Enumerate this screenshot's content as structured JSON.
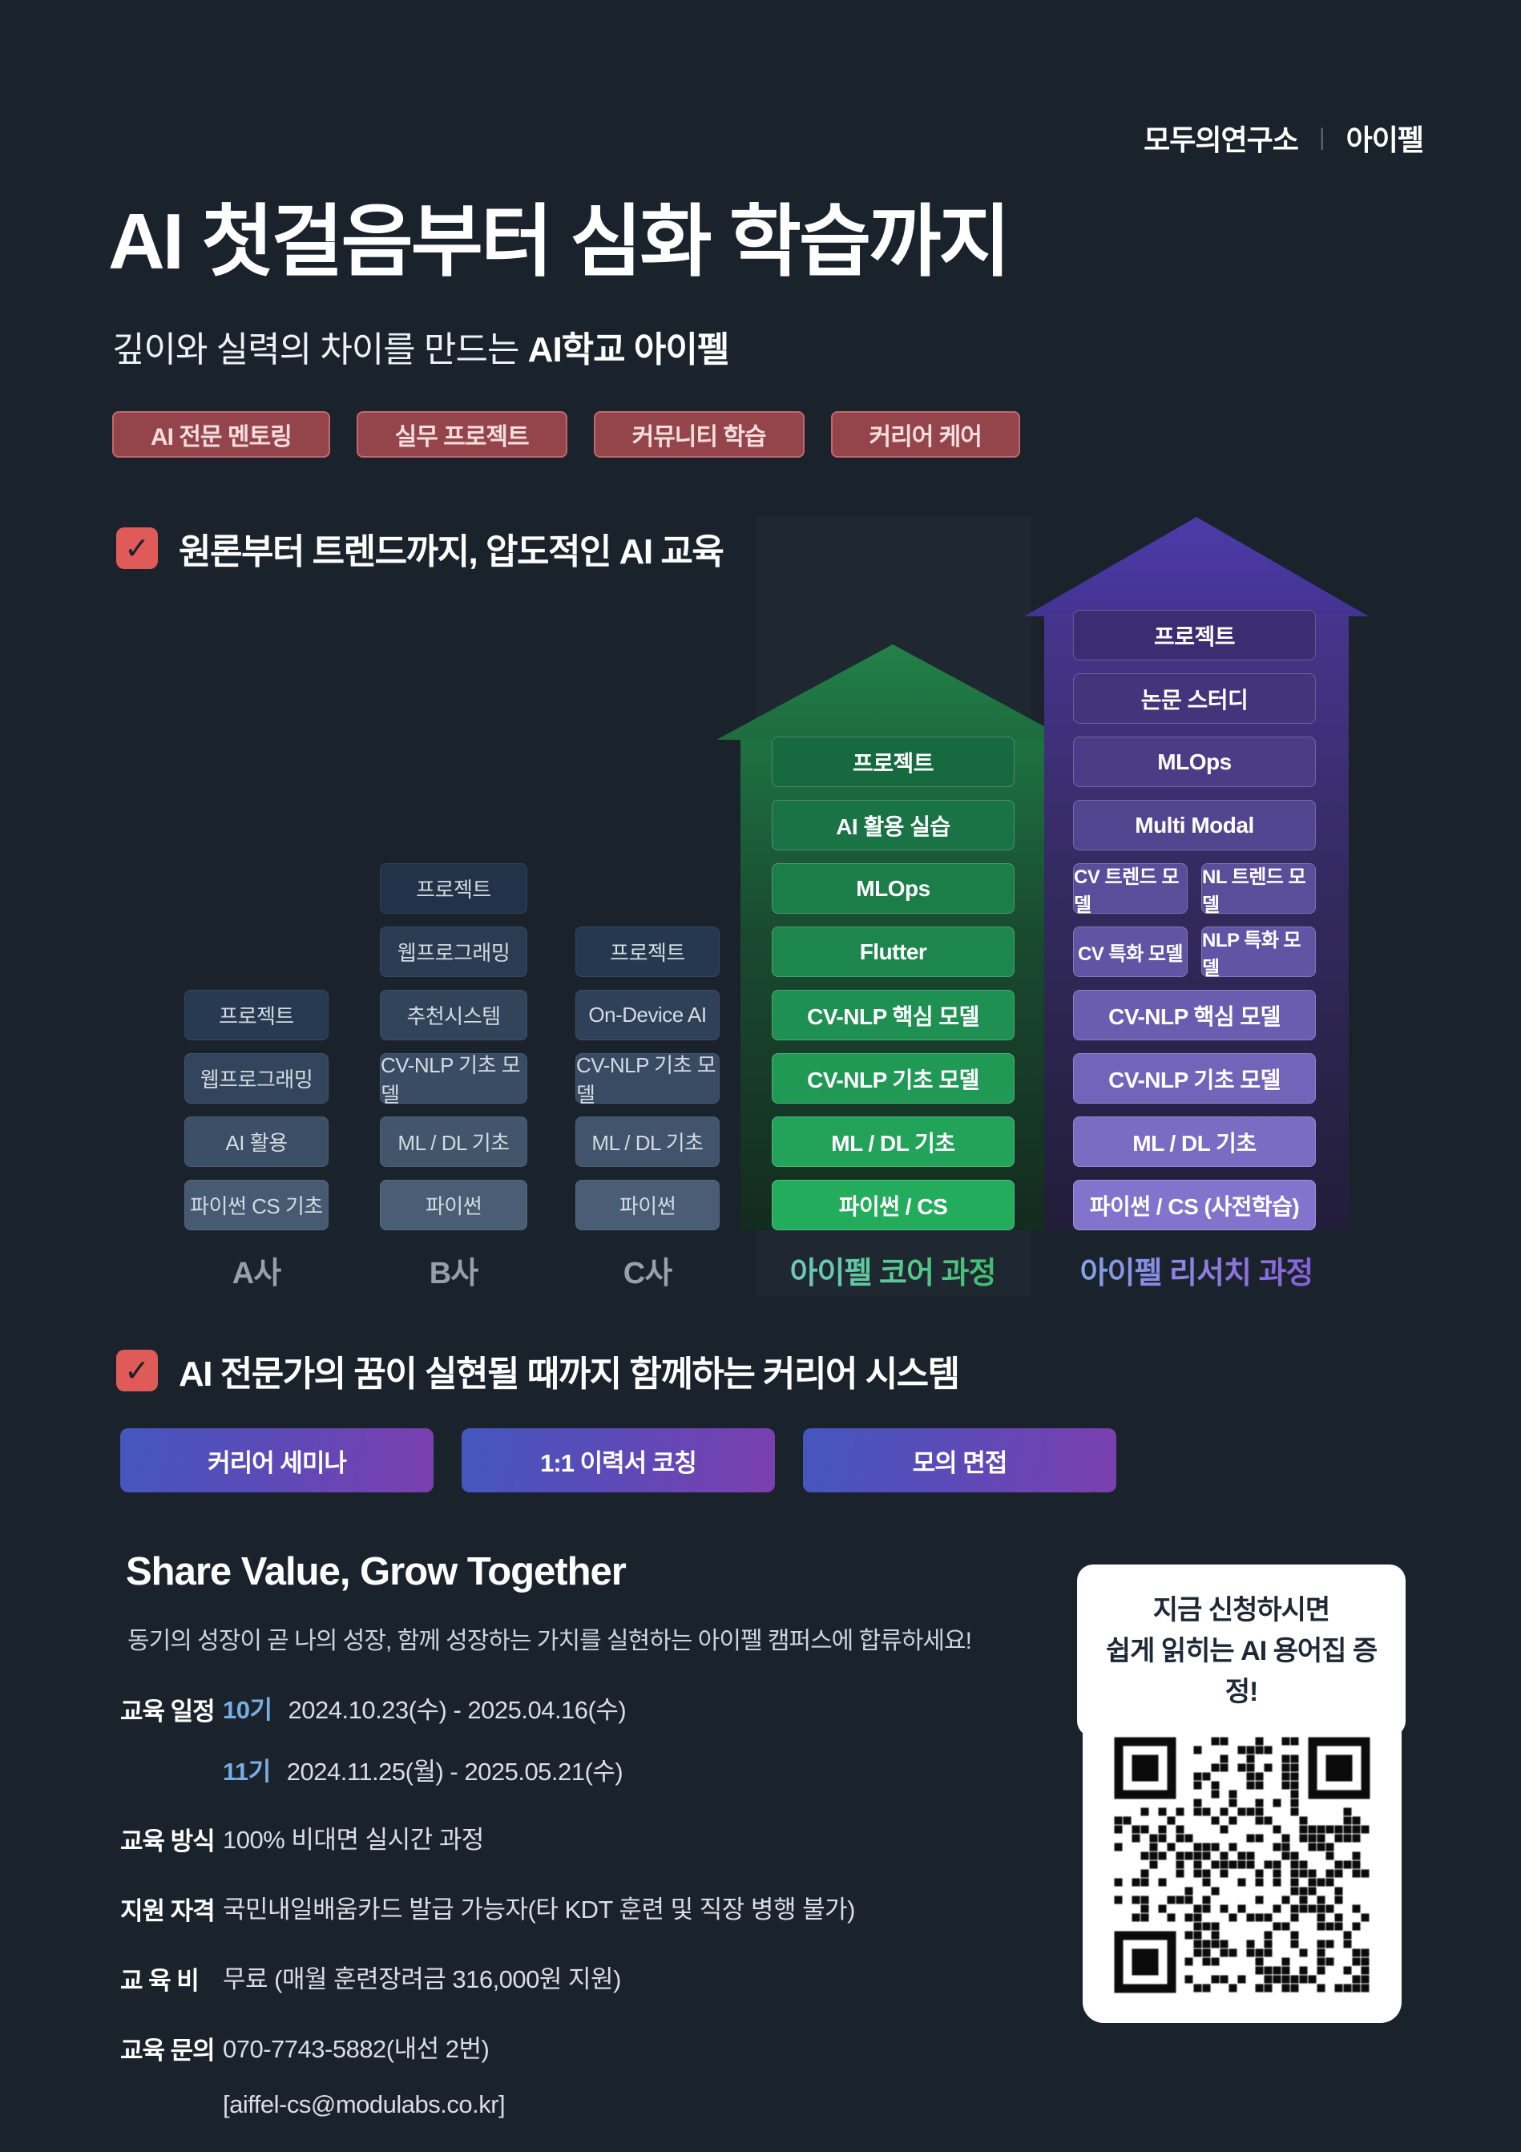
{
  "brand": {
    "left": "모두의연구소",
    "divider": "|",
    "right": "아이펠"
  },
  "hero": {
    "title": "AI 첫걸음부터 심화 학습까지",
    "subtitle_prefix": "깊이와 실력의 차이를 만드는 ",
    "subtitle_bold": "AI학교 아이펠",
    "badges": [
      "AI 전문 멘토링",
      "실무 프로젝트",
      "커뮤니티 학습",
      "커리어 케어"
    ]
  },
  "sections": {
    "education": {
      "check": "✓",
      "title": "원론부터 트렌드까지, 압도적인 AI 교육"
    },
    "career": {
      "check": "✓",
      "title": "AI 전문가의 꿈이 실현될 때까지 함께하는 커리어 시스템"
    }
  },
  "chart_data": {
    "type": "bar",
    "title": "원론부터 트렌드까지, 압도적인 AI 교육",
    "description": "Curriculum stack comparison: competitor bootcamps A/B/C vs AIFFEL Core and AIFFEL Research tracks, stacked bottom-to-top from basics to projects",
    "columns": [
      {
        "name": "A사",
        "theme": "navy",
        "items": [
          "프로젝트",
          "웹프로그래밍",
          "AI 활용",
          "파이썬 CS 기초"
        ]
      },
      {
        "name": "B사",
        "theme": "navy",
        "items": [
          "프로젝트",
          "웹프로그래밍",
          "추천시스템",
          "CV-NLP 기초 모델",
          "ML / DL 기초",
          "파이썬"
        ]
      },
      {
        "name": "C사",
        "theme": "navy",
        "items": [
          "프로젝트",
          "On-Device AI",
          "CV-NLP 기초 모델",
          "ML / DL 기초",
          "파이썬"
        ]
      },
      {
        "name": "아이펠 코어 과정",
        "theme": "green",
        "arrow": true,
        "items": [
          "프로젝트",
          "AI 활용 실습",
          "MLOps",
          "Flutter",
          "CV-NLP 핵심 모델",
          "CV-NLP 기초 모델",
          "ML / DL 기초",
          "파이썬 / CS"
        ]
      },
      {
        "name": "아이펠 리서치 과정",
        "theme": "purple",
        "arrow": true,
        "items": [
          "프로젝트",
          "논문 스터디",
          "MLOps",
          "Multi Modal",
          [
            "CV 트렌드 모델",
            "NL 트렌드 모델"
          ],
          [
            "CV 특화 모델",
            "NLP 특화 모델"
          ],
          "CV-NLP 핵심 모델",
          "CV-NLP 기초 모델",
          "ML / DL 기초",
          "파이썬 / CS (사전학습)"
        ]
      }
    ]
  },
  "career": {
    "buttons": [
      "커리어 세미나",
      "1:1 이력서 코칭",
      "모의 면접"
    ]
  },
  "bottom": {
    "headline": "Share Value, Grow Together",
    "subtext": "동기의 성장이 곧 나의 성장, 함께 성장하는 가치를 실현하는 아이펠 캠퍼스에 합류하세요!",
    "info_rows": [
      {
        "label": "교육 일정",
        "lines": [
          {
            "tag": "10기",
            "text": "2024.10.23(수) - 2025.04.16(수)"
          },
          {
            "tag": "11기",
            "text": "2024.11.25(월) - 2025.05.21(수)"
          }
        ]
      },
      {
        "label": "교육 방식",
        "lines": [
          {
            "text": "100% 비대면 실시간 과정"
          }
        ]
      },
      {
        "label": "지원 자격",
        "lines": [
          {
            "text": "국민내일배움카드 발급 가능자(타 KDT 훈련 및 직장 병행 불가)"
          }
        ]
      },
      {
        "label": "교 육 비",
        "lines": [
          {
            "text": "무료 (매월 훈련장려금 316,000원 지원)"
          }
        ]
      },
      {
        "label": "교육 문의",
        "lines": [
          {
            "text": "070-7743-5882(내선 2번)"
          },
          {
            "text": "[aiffel-cs@modulabs.co.kr]"
          }
        ]
      }
    ],
    "bubble": {
      "line1": "지금 신청하시면",
      "line2": "쉽게 읽히는 AI 용어집 증정!"
    }
  },
  "colors": {
    "background": "#1a222c",
    "badge_red": "#93454b",
    "check_red": "#e05a5a",
    "core_green": "#21a158",
    "research_purple": "#6f5cb5",
    "button_gradient_start": "#4457bd",
    "button_gradient_end": "#7b3fae",
    "schedule_tag_blue": "#79aee3"
  }
}
